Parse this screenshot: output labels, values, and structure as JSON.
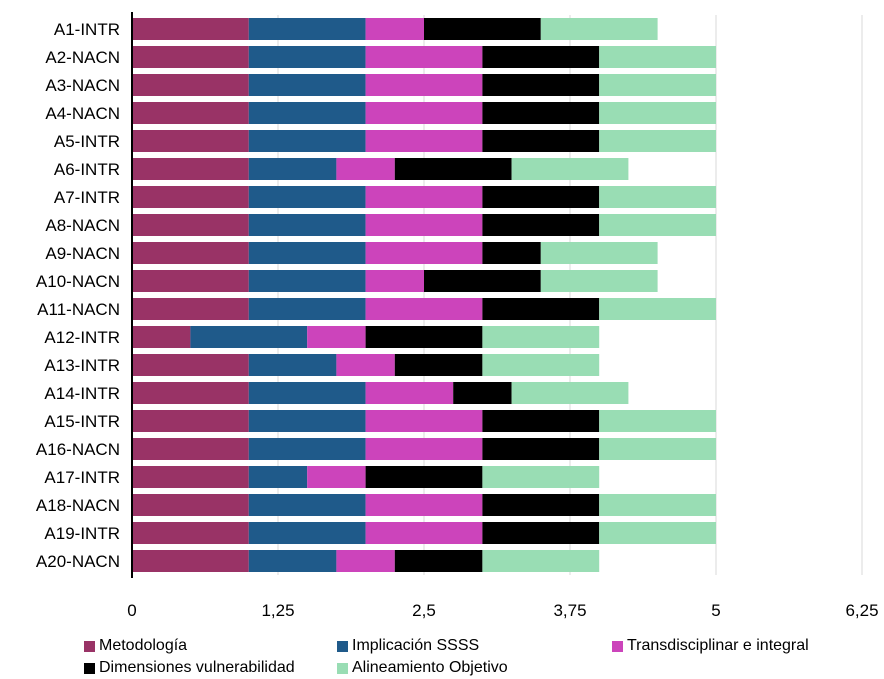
{
  "chart_data": {
    "type": "bar",
    "orientation": "horizontal",
    "stacked": true,
    "categories": [
      "A1-INTR",
      "A2-NACN",
      "A3-NACN",
      "A4-NACN",
      "A5-INTR",
      "A6-INTR",
      "A7-INTR",
      "A8-NACN",
      "A9-NACN",
      "A10-NACN",
      "A11-NACN",
      "A12-INTR",
      "A13-INTR",
      "A14-INTR",
      "A15-INTR",
      "A16-NACN",
      "A17-INTR",
      "A18-NACN",
      "A19-INTR",
      "A20-NACN"
    ],
    "series": [
      {
        "name": "Metodología",
        "color": "#993366",
        "values": [
          1,
          1,
          1,
          1,
          1,
          1,
          1,
          1,
          1,
          1,
          1,
          0.5,
          1,
          1,
          1,
          1,
          1,
          1,
          1,
          1
        ]
      },
      {
        "name": "Implicación SSSS",
        "color": "#1f5a8a",
        "values": [
          1,
          1,
          1,
          1,
          1,
          0.75,
          1,
          1,
          1,
          1,
          1,
          1,
          0.75,
          1,
          1,
          1,
          0.5,
          1,
          1,
          0.75
        ]
      },
      {
        "name": "Transdisciplinar e integral",
        "color": "#cc44bb",
        "values": [
          0.5,
          1,
          1,
          1,
          1,
          0.5,
          1,
          1,
          1,
          0.5,
          1,
          0.5,
          0.5,
          0.75,
          1,
          1,
          0.5,
          1,
          1,
          0.5
        ]
      },
      {
        "name": "Dimensiones vulnerabilidad",
        "color": "#000000",
        "values": [
          1,
          1,
          1,
          1,
          1,
          1,
          1,
          1,
          0.5,
          1,
          1,
          1,
          0.75,
          0.5,
          1,
          1,
          1,
          1,
          1,
          0.75
        ]
      },
      {
        "name": "Alineamiento Objetivo",
        "color": "#99ddb4",
        "values": [
          1,
          1,
          1,
          1,
          1,
          1,
          1,
          1,
          1,
          1,
          1,
          1,
          1,
          1,
          1,
          1,
          1,
          1,
          1,
          1
        ]
      }
    ],
    "x_ticks": [
      "0",
      "1,25",
      "2,5",
      "3,75",
      "5",
      "6,25"
    ],
    "xlim": [
      0,
      6.25
    ],
    "grid": true,
    "legend_position": "bottom"
  }
}
